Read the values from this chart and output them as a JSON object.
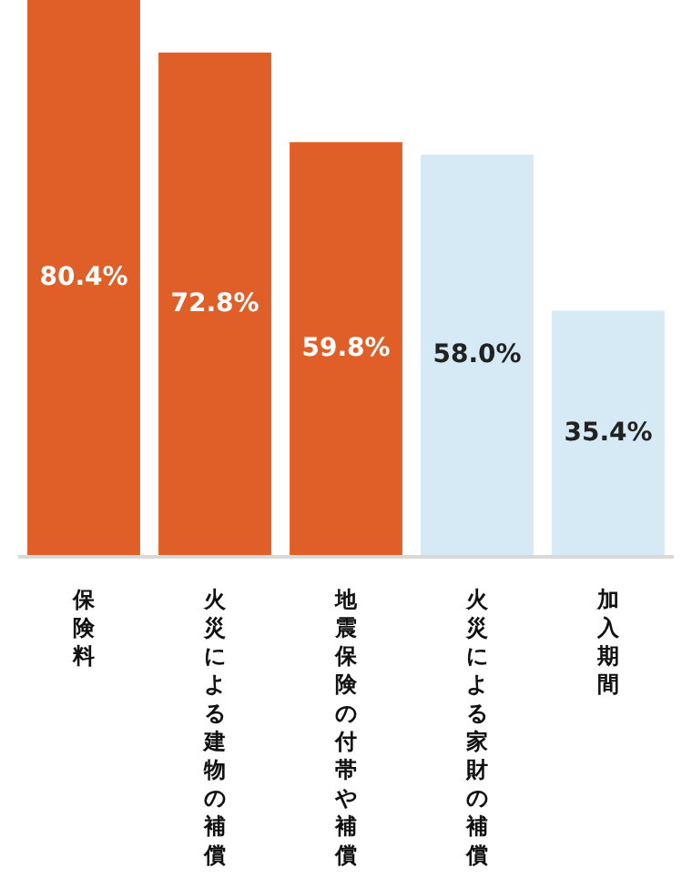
{
  "chart_data": {
    "type": "bar",
    "categories": [
      "保険料",
      "火災による建物の補償",
      "地震保険の付帯や補償",
      "火災による家財の補償",
      "加入期間"
    ],
    "values": [
      80.4,
      72.8,
      59.8,
      58.0,
      35.4
    ],
    "value_labels": [
      "80.4%",
      "72.8%",
      "59.8%",
      "58.0%",
      "35.4%"
    ],
    "colors": [
      "#e05e28",
      "#e05e28",
      "#e05e28",
      "#d6eaf6",
      "#d6eaf6"
    ]
  }
}
